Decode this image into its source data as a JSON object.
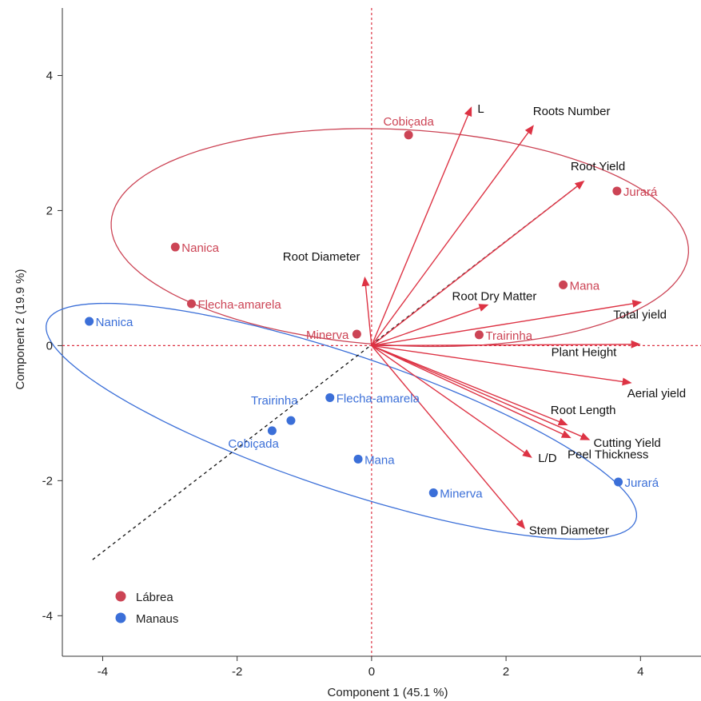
{
  "chart_data": {
    "type": "scatter",
    "xlabel": "Component 1  (45.1 %)",
    "ylabel": "Component 2  (19.9 %)",
    "xlim": [
      -4.6,
      4.9
    ],
    "ylim": [
      -4.6,
      5.0
    ],
    "x_ticks": [
      "-4",
      "-2",
      "0",
      "2",
      "4"
    ],
    "y_ticks": [
      "-4",
      "-2",
      "0",
      "2",
      "4"
    ],
    "x_tick_values": [
      -4,
      -2,
      0,
      2,
      4
    ],
    "y_tick_values": [
      -4,
      -2,
      0,
      2,
      4
    ],
    "colors": {
      "labrea": "#cc4455",
      "manaus": "#3b6fd8",
      "arrow": "#dd3344"
    },
    "legend": {
      "position": "bottom-left",
      "items": [
        {
          "label": "Lábrea",
          "color": "#cc4455"
        },
        {
          "label": "Manaus",
          "color": "#3b6fd8"
        }
      ]
    },
    "series": [
      {
        "name": "Lábrea",
        "color": "#cc4455",
        "points": [
          {
            "label": "Cobiçada",
            "x": 0.55,
            "y": 3.12
          },
          {
            "label": "Jurará",
            "x": 3.65,
            "y": 2.29
          },
          {
            "label": "Nanica",
            "x": -2.92,
            "y": 1.46
          },
          {
            "label": "Mana",
            "x": 2.85,
            "y": 0.9
          },
          {
            "label": "Flecha-amarela",
            "x": -2.68,
            "y": 0.62
          },
          {
            "label": "Minerva",
            "x": -0.22,
            "y": 0.17
          },
          {
            "label": "Trairinha",
            "x": 1.6,
            "y": 0.16
          }
        ]
      },
      {
        "name": "Manaus",
        "color": "#3b6fd8",
        "points": [
          {
            "label": "Nanica",
            "x": -4.2,
            "y": 0.36
          },
          {
            "label": "Flecha-amarela",
            "x": -0.62,
            "y": -0.77
          },
          {
            "label": "Trairinha",
            "x": -1.2,
            "y": -1.11
          },
          {
            "label": "Cobiçada",
            "x": -1.48,
            "y": -1.26
          },
          {
            "label": "Mana",
            "x": -0.2,
            "y": -1.68
          },
          {
            "label": "Minerva",
            "x": 0.92,
            "y": -2.18
          },
          {
            "label": "Jurará",
            "x": 3.67,
            "y": -2.02
          }
        ]
      }
    ],
    "loadings": [
      {
        "label": "L",
        "x": 1.48,
        "y": 3.52
      },
      {
        "label": "Roots Number",
        "x": 2.4,
        "y": 3.25
      },
      {
        "label": "Root Yield",
        "x": 3.15,
        "y": 2.43
      },
      {
        "label": "Root Diameter",
        "x": -0.1,
        "y": 1.0
      },
      {
        "label": "Root Dry Matter",
        "x": 1.72,
        "y": 0.6
      },
      {
        "label": "Total yield",
        "x": 4.0,
        "y": 0.64
      },
      {
        "label": "Plant Height",
        "x": 3.98,
        "y": 0.02
      },
      {
        "label": "Aerial yield",
        "x": 3.85,
        "y": -0.55
      },
      {
        "label": "Root Length",
        "x": 2.9,
        "y": -1.17
      },
      {
        "label": "Cutting Yield",
        "x": 3.23,
        "y": -1.39
      },
      {
        "label": "Peel Thickness",
        "x": 2.95,
        "y": -1.36
      },
      {
        "label": "L/D",
        "x": 2.37,
        "y": -1.65
      },
      {
        "label": "Stem Diameter",
        "x": 2.27,
        "y": -2.7
      }
    ],
    "ellipses": [
      {
        "group": "Lábrea",
        "cx": 0.42,
        "cy": 1.6,
        "rx": 4.3,
        "ry": 1.6,
        "angle_deg": -3,
        "color": "#cc4455"
      },
      {
        "group": "Manaus",
        "cx": -0.45,
        "cy": -1.12,
        "rx": 4.62,
        "ry": 1.0,
        "angle_deg": -18.5,
        "color": "#3b6fd8"
      }
    ],
    "dashed_line": {
      "x1": -4.15,
      "y1": -3.17,
      "x2": 3.15,
      "y2": 2.43,
      "color": "#111111"
    }
  }
}
